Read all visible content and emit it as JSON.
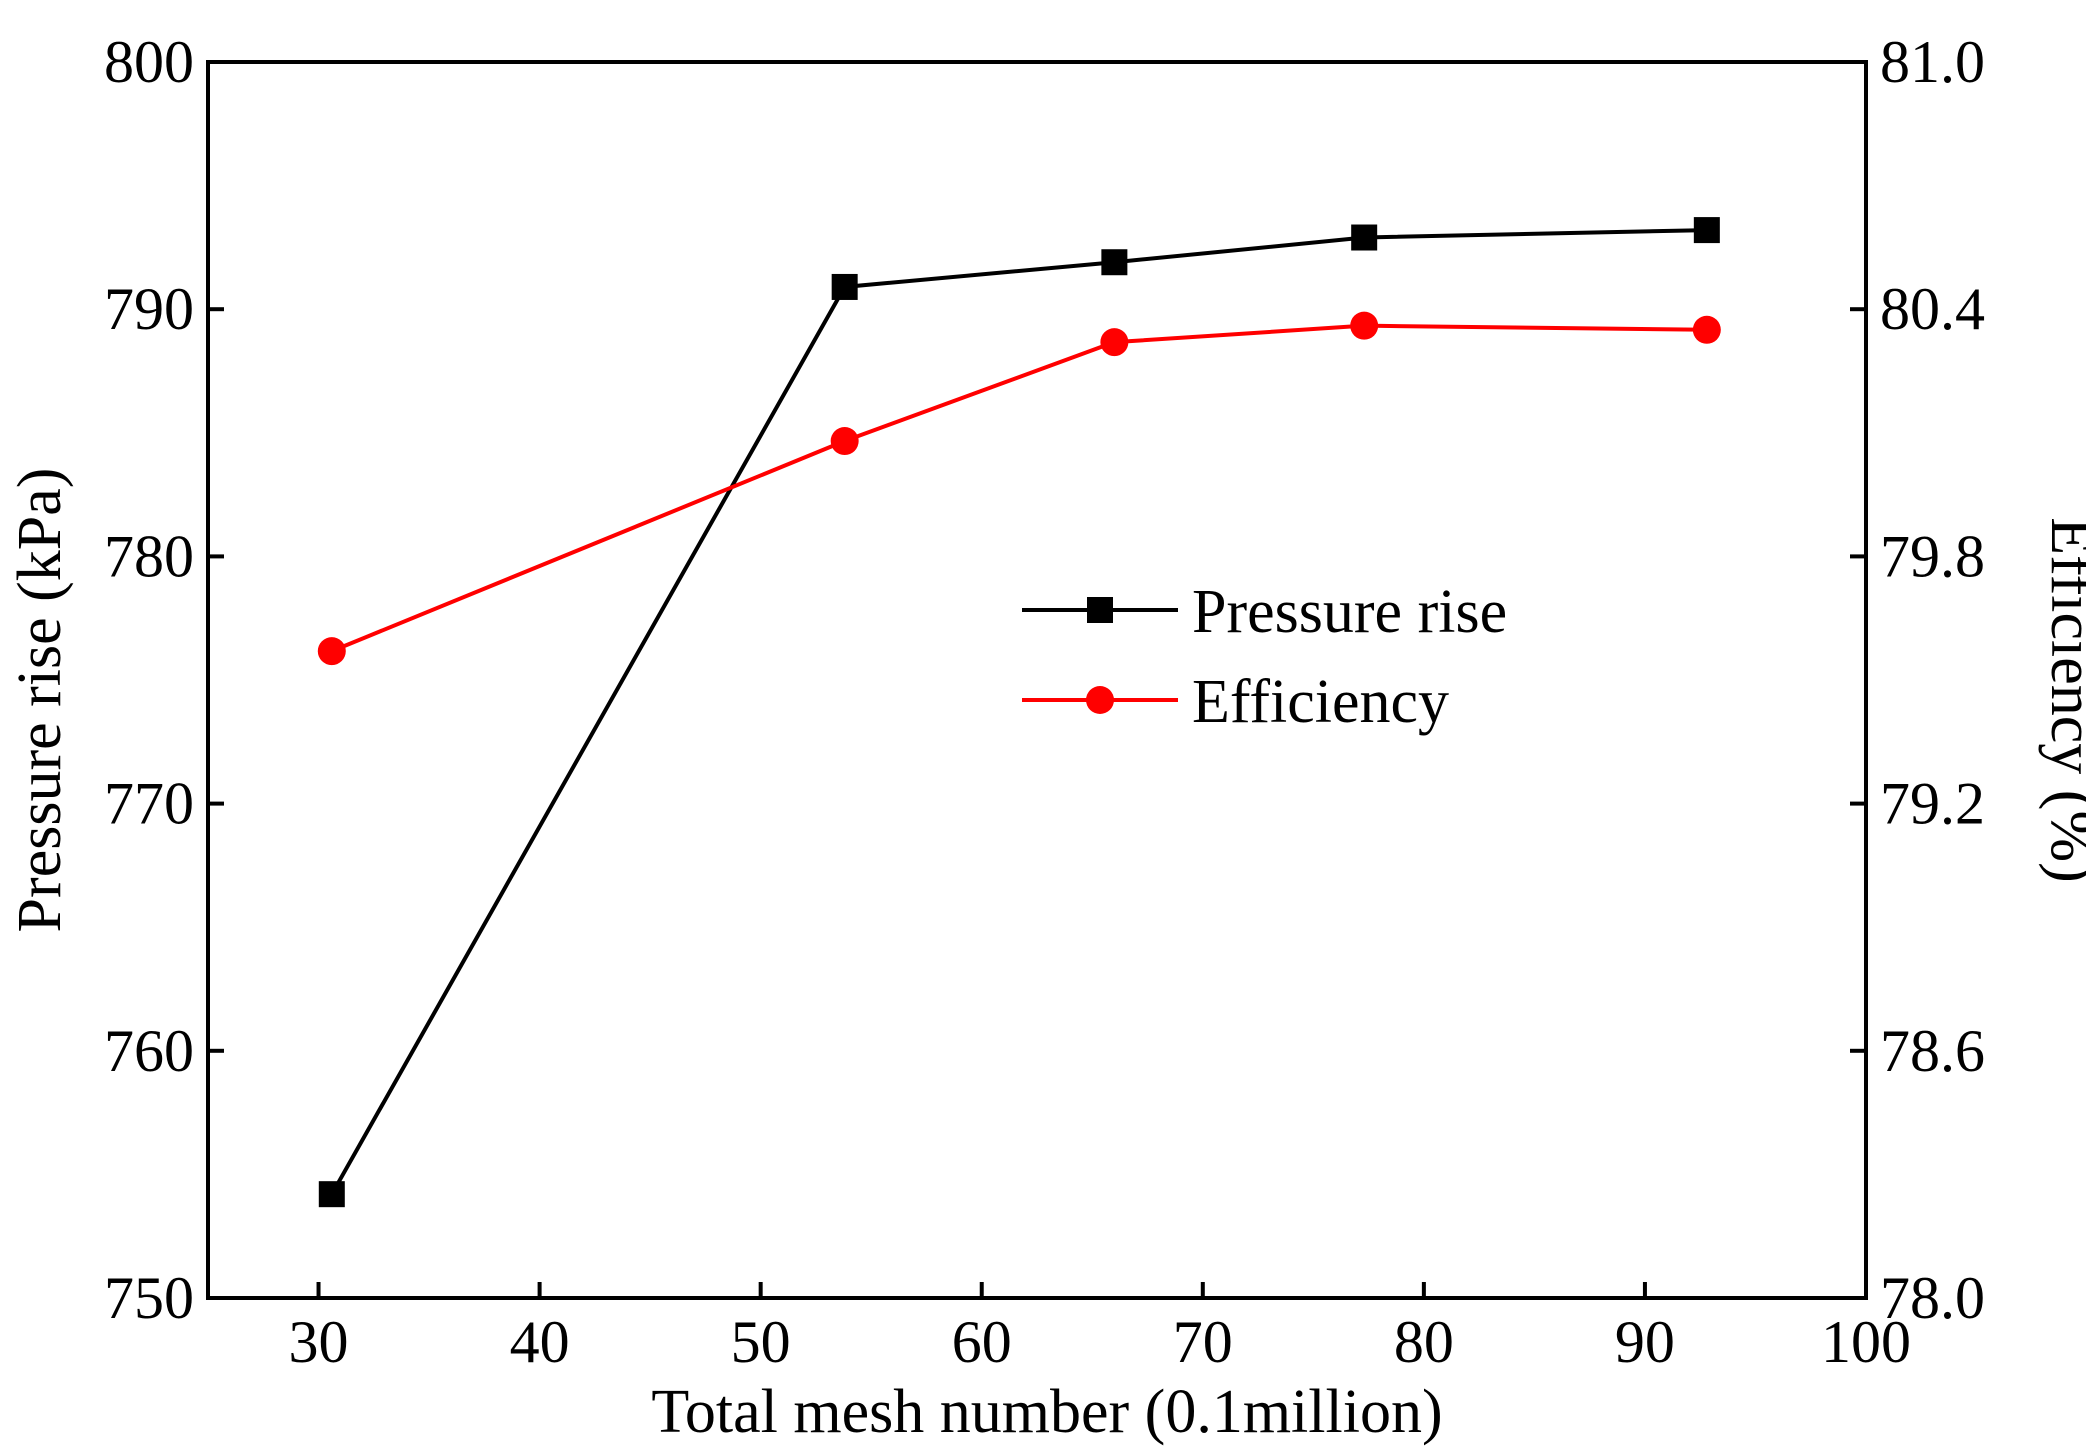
{
  "chart_data": {
    "type": "line",
    "title": "",
    "xlabel": "Total mesh number  (0.1million)",
    "ylabel": "Pressure rise  (kPa)",
    "y2label": "Efficiency  (%)",
    "xlim": [
      25,
      100
    ],
    "ylim": [
      750,
      800
    ],
    "y2lim": [
      78.0,
      81.0
    ],
    "x_ticks": [
      30,
      40,
      50,
      60,
      70,
      80,
      90,
      100
    ],
    "x_tick_labels": [
      "30",
      "40",
      "50",
      "60",
      "70",
      "80",
      "90",
      "100"
    ],
    "y_ticks": [
      750,
      760,
      770,
      780,
      790,
      800
    ],
    "y_tick_labels": [
      "750",
      "760",
      "770",
      "780",
      "790",
      "800"
    ],
    "y2_ticks": [
      78.0,
      78.6,
      79.2,
      79.8,
      80.4,
      81.0
    ],
    "y2_tick_labels": [
      "78.0",
      "78.6",
      "79.2",
      "79.8",
      "80.4",
      "81.0"
    ],
    "grid": false,
    "legend_position": "center-right",
    "series": [
      {
        "name": "Pressure rise",
        "axis": "left",
        "marker": "square",
        "color": "#000000",
        "x": [
          30.6,
          53.8,
          66.0,
          77.3,
          92.8
        ],
        "values": [
          754.2,
          790.9,
          791.9,
          792.9,
          793.2
        ]
      },
      {
        "name": "Efficiency",
        "axis": "right",
        "marker": "circle",
        "color": "#ff0000",
        "x": [
          30.6,
          53.8,
          66.0,
          77.3,
          92.8
        ],
        "values": [
          79.57,
          80.08,
          80.32,
          80.36,
          80.35
        ]
      }
    ]
  }
}
